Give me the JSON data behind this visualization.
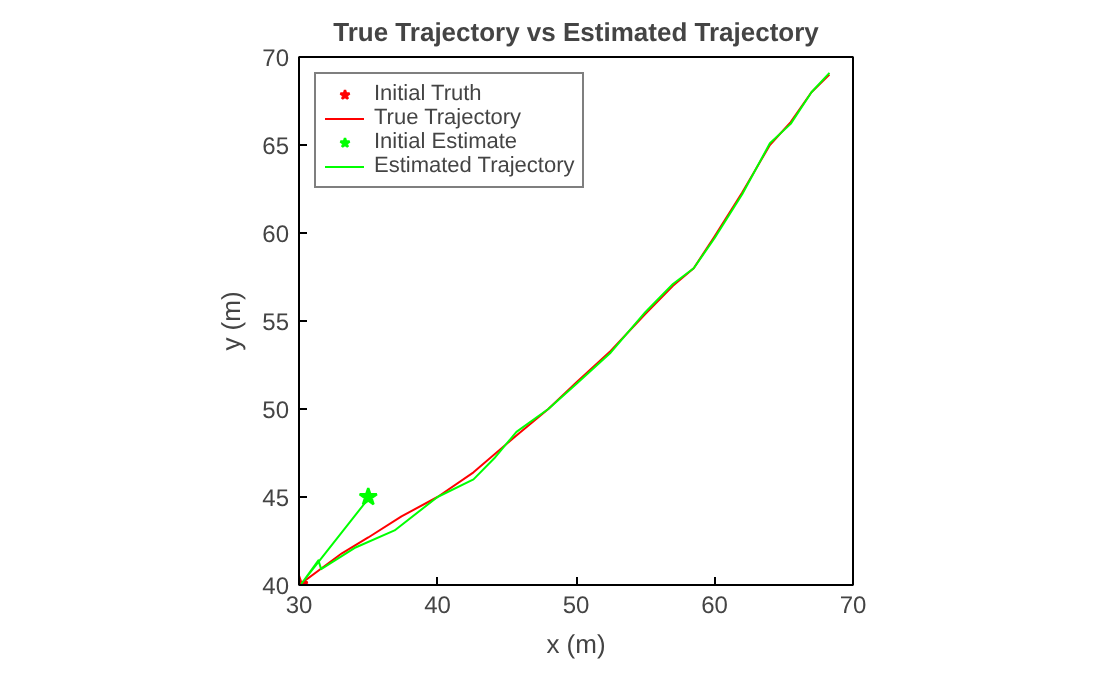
{
  "chart_data": {
    "type": "line",
    "title": "True Trajectory vs Estimated Trajectory",
    "xlabel": "x (m)",
    "ylabel": "y (m)",
    "xlim": [
      30,
      70
    ],
    "ylim": [
      40,
      70
    ],
    "xticks": [
      30,
      40,
      50,
      60,
      70
    ],
    "yticks": [
      40,
      45,
      50,
      55,
      60,
      65,
      70
    ],
    "grid": false,
    "legend": "top left",
    "series": [
      {
        "name": "Initial Truth",
        "type": "scatter",
        "marker": "star",
        "color": "#ff0000",
        "x": [
          30
        ],
        "values": [
          40
        ]
      },
      {
        "name": "True Trajectory",
        "color": "#ff0000",
        "x": [
          30,
          33.1,
          35,
          37.4,
          40,
          42.6,
          45.7,
          48,
          50,
          52.5,
          55,
          57,
          58.5,
          60,
          62,
          64,
          65.5,
          67,
          68.3
        ],
        "values": [
          40,
          41.8,
          42.7,
          43.9,
          45,
          46.4,
          48.5,
          50,
          51.5,
          53.3,
          55.4,
          57,
          58,
          59.8,
          62.3,
          65,
          66.3,
          68,
          69
        ]
      },
      {
        "name": "Initial Estimate",
        "type": "scatter",
        "marker": "star",
        "color": "#00ff00",
        "x": [
          35
        ],
        "values": [
          45
        ]
      },
      {
        "name": "Estimated Trajectory",
        "color": "#00ff00",
        "x": [
          35.1,
          30.2,
          31.4,
          31.6,
          34,
          36.9,
          40,
          42.6,
          44.1,
          45.7,
          48,
          50,
          52.5,
          55,
          57,
          58.5,
          60,
          62,
          64,
          65.5,
          67,
          68.3
        ],
        "values": [
          45,
          40.1,
          41.4,
          40.9,
          42.1,
          43.1,
          45,
          46,
          47.2,
          48.7,
          50,
          51.4,
          53.2,
          55.5,
          57.1,
          58,
          59.7,
          62.2,
          65.1,
          66.2,
          68,
          69.1
        ]
      }
    ]
  }
}
